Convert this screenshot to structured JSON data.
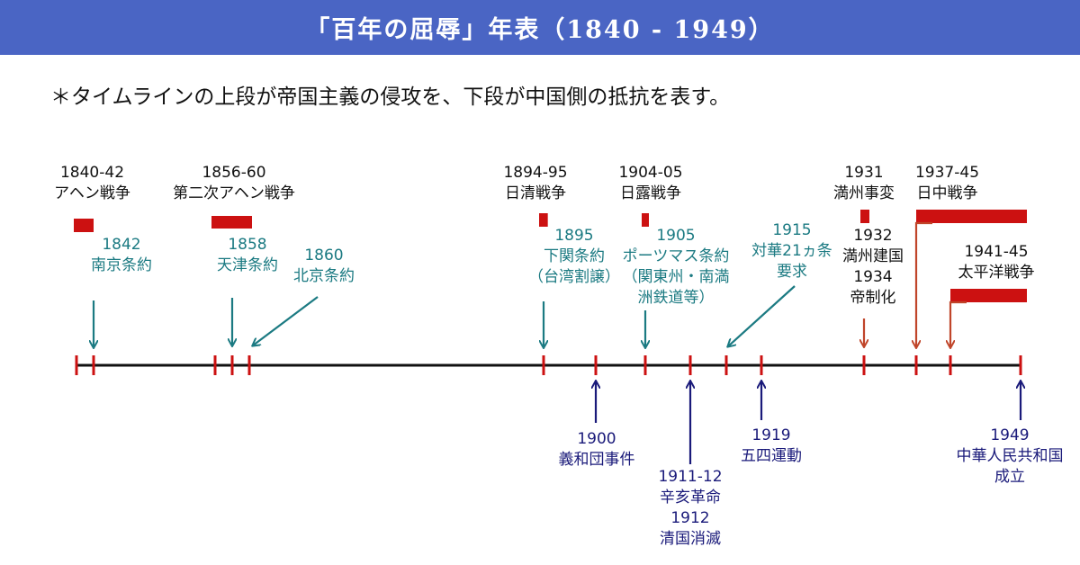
{
  "header": {
    "title": "「百年の屈辱」年表（1840 - 1949）"
  },
  "note": "＊タイムラインの上段が帝国主義の侵攻を、下段が中国側の抵抗を表す。",
  "colors": {
    "header_bg": "#4a65c4",
    "axis": "#111111",
    "tick": "#cc1111",
    "bar": "#cc1111",
    "treaty": "#1b7a82",
    "resistance": "#1a1a7a",
    "invasion_arrow": "#c0452a"
  },
  "chart_data": {
    "type": "timeline",
    "axis_range": [
      1840,
      1949
    ],
    "tick_years": [
      1840,
      1842,
      1856,
      1858,
      1860,
      1894,
      1900,
      1904,
      1911,
      1915,
      1919,
      1931,
      1937,
      1941,
      1949
    ],
    "wars": [
      {
        "years": "1840-42",
        "name": "アヘン戦争",
        "start": 1840,
        "end": 1842
      },
      {
        "years": "1856-60",
        "name": "第二次アヘン戦争",
        "start": 1856,
        "end": 1860
      },
      {
        "years": "1894-95",
        "name": "日清戦争",
        "start": 1894,
        "end": 1895
      },
      {
        "years": "1904-05",
        "name": "日露戦争",
        "start": 1904,
        "end": 1905
      },
      {
        "years": "1931",
        "name": "満州事変",
        "start": 1931,
        "end": 1931
      },
      {
        "years": "1937-45",
        "name": "日中戦争",
        "start": 1937,
        "end": 1945
      },
      {
        "years": "1941-45",
        "name": "太平洋戦争",
        "start": 1941,
        "end": 1945
      }
    ],
    "treaties": [
      {
        "lines": [
          "1842",
          "南京条約"
        ],
        "year": 1842
      },
      {
        "lines": [
          "1858",
          "天津条約"
        ],
        "year": 1858
      },
      {
        "lines": [
          "1860",
          "北京条約"
        ],
        "year": 1860
      },
      {
        "lines": [
          "1895",
          "下関条約",
          "（台湾割譲）"
        ],
        "year": 1895
      },
      {
        "lines": [
          "1905",
          "ポーツマス条約",
          "（関東州・南満",
          "洲鉄道等）"
        ],
        "year": 1905
      },
      {
        "lines": [
          "1915",
          "対華21ヵ条",
          "要求"
        ],
        "year": 1915
      }
    ],
    "manchuria_events": [
      "1932",
      "満州建国",
      "1934",
      "帝制化"
    ],
    "resistance": [
      {
        "lines": [
          "1900",
          "義和団事件"
        ],
        "year": 1900
      },
      {
        "lines": [
          "1911-12",
          "辛亥革命",
          "1912",
          "清国消滅"
        ],
        "year": 1911
      },
      {
        "lines": [
          "1919",
          "五四運動"
        ],
        "year": 1919
      },
      {
        "lines": [
          "1949",
          "中華人民共和国",
          "成立"
        ],
        "year": 1949
      }
    ]
  }
}
